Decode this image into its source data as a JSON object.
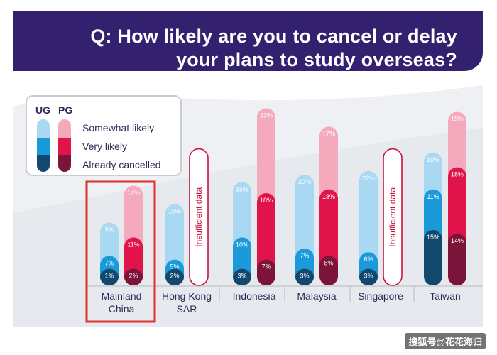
{
  "title": {
    "line1": "Q: How likely are you to cancel or delay",
    "line2": "your plans to study overseas?"
  },
  "legend": {
    "ug": "UG",
    "pg": "PG",
    "items": [
      "Somewhat likely",
      "Very likely",
      "Already cancelled"
    ]
  },
  "watermark": "搜狐号@花花海归",
  "colors": {
    "ug_somewhat": "#a9d8f3",
    "ug_very": "#1a9ad9",
    "ug_cancelled": "#12476e",
    "pg_somewhat": "#f4a9bd",
    "pg_very": "#e0134a",
    "pg_cancelled": "#7a1438",
    "highlight": "#e0312f",
    "title_bg": "#33206f"
  },
  "chart_data": {
    "type": "bar",
    "stacking": "overlapping stacked pills (cumulative)",
    "categories": [
      "Mainland China",
      "Hong Kong SAR",
      "Indonesia",
      "Malaysia",
      "Singapore",
      "Taiwan"
    ],
    "category_lines": [
      [
        "Mainland",
        "China"
      ],
      [
        "Hong Kong",
        "SAR"
      ],
      [
        "Indonesia"
      ],
      [
        "Malaysia"
      ],
      [
        "Singapore"
      ],
      [
        "Taiwan"
      ]
    ],
    "highlighted_category": "Mainland China",
    "insufficient_data_label": "Insufficient data",
    "series": [
      {
        "name": "UG Somewhat likely",
        "values": [
          9,
          15,
          15,
          20,
          22,
          10
        ]
      },
      {
        "name": "UG Very likely",
        "values": [
          7,
          5,
          10,
          7,
          6,
          11
        ]
      },
      {
        "name": "UG Already cancelled",
        "values": [
          1,
          2,
          3,
          3,
          3,
          15
        ]
      },
      {
        "name": "PG Somewhat likely",
        "values": [
          14,
          null,
          23,
          17,
          null,
          15
        ]
      },
      {
        "name": "PG Very likely",
        "values": [
          11,
          null,
          18,
          18,
          null,
          18
        ]
      },
      {
        "name": "PG Already cancelled",
        "values": [
          2,
          null,
          7,
          8,
          null,
          14
        ]
      }
    ]
  }
}
